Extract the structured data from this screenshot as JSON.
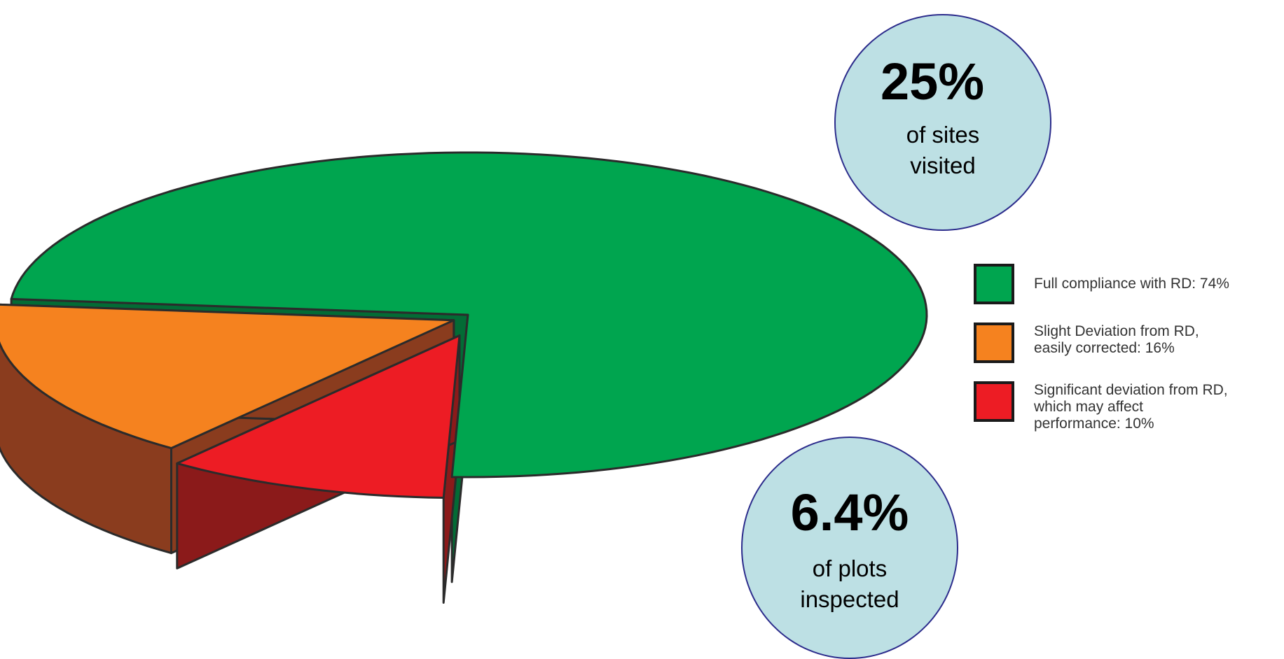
{
  "chart_data": {
    "type": "pie",
    "style": "3d-exploded",
    "slices": [
      {
        "label": "Full compliance with RD: 74%",
        "value": 74,
        "color": "#00a54f",
        "side_color": "#036b35"
      },
      {
        "label": "Slight Deviation from RD,\neasily corrected: 16%",
        "value": 16,
        "color": "#f5821f",
        "side_color": "#8a3c1e"
      },
      {
        "label": "Significant deviation from RD,\nwhich may affect\nperformance: 10%",
        "value": 10,
        "color": "#ed1c24",
        "side_color": "#8b1a1a"
      }
    ],
    "legend_placement": "right",
    "annotations": [
      {
        "value": "25%",
        "text": "of sites\nvisited"
      },
      {
        "value": "6.4%",
        "text": "of plots\ninspected"
      }
    ]
  }
}
